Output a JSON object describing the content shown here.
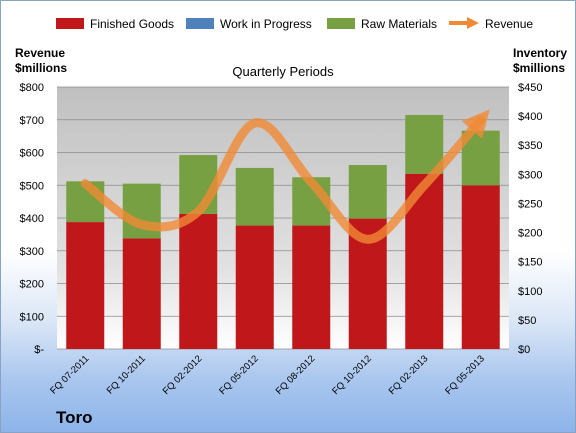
{
  "chart_data": {
    "type": "bar",
    "stacked": true,
    "subtitle": "Quarterly Periods",
    "footer": "Toro",
    "left_axis": {
      "title_line1": "Revenue",
      "title_line2": "$millions",
      "ticks": [
        "$-",
        "$100",
        "$200",
        "$300",
        "$400",
        "$500",
        "$600",
        "$700",
        "$800"
      ],
      "range": [
        0,
        800
      ]
    },
    "right_axis": {
      "title_line1": "Inventory",
      "title_line2": "$millions",
      "ticks": [
        "$0",
        "$50",
        "$100",
        "$150",
        "$200",
        "$250",
        "$300",
        "$350",
        "$400",
        "$450"
      ],
      "range": [
        0,
        450
      ]
    },
    "categories": [
      "FQ 07-2011",
      "FQ 10-2011",
      "FQ 02-2012",
      "FQ 05-2012",
      "FQ 08-2012",
      "FQ 10-2012",
      "FQ 02-2013",
      "FQ 05-2013"
    ],
    "series": [
      {
        "name": "Finished Goods",
        "color": "#c0171a",
        "axis": "right",
        "values": [
          218,
          190,
          232,
          212,
          212,
          224,
          301,
          281
        ]
      },
      {
        "name": "Work in Progress",
        "color": "#4f81bd",
        "axis": "right",
        "values": [
          0,
          0,
          0,
          0,
          0,
          0,
          0,
          0
        ]
      },
      {
        "name": "Raw Materials",
        "color": "#76a041",
        "axis": "right",
        "values": [
          70,
          94,
          101,
          99,
          83,
          92,
          101,
          94
        ]
      },
      {
        "name": "Revenue",
        "color": "#f08a34",
        "axis": "left",
        "type": "line",
        "values": [
          505,
          380,
          420,
          690,
          510,
          335,
          500,
          700
        ]
      }
    ],
    "grid": true,
    "legend_position": "top"
  }
}
